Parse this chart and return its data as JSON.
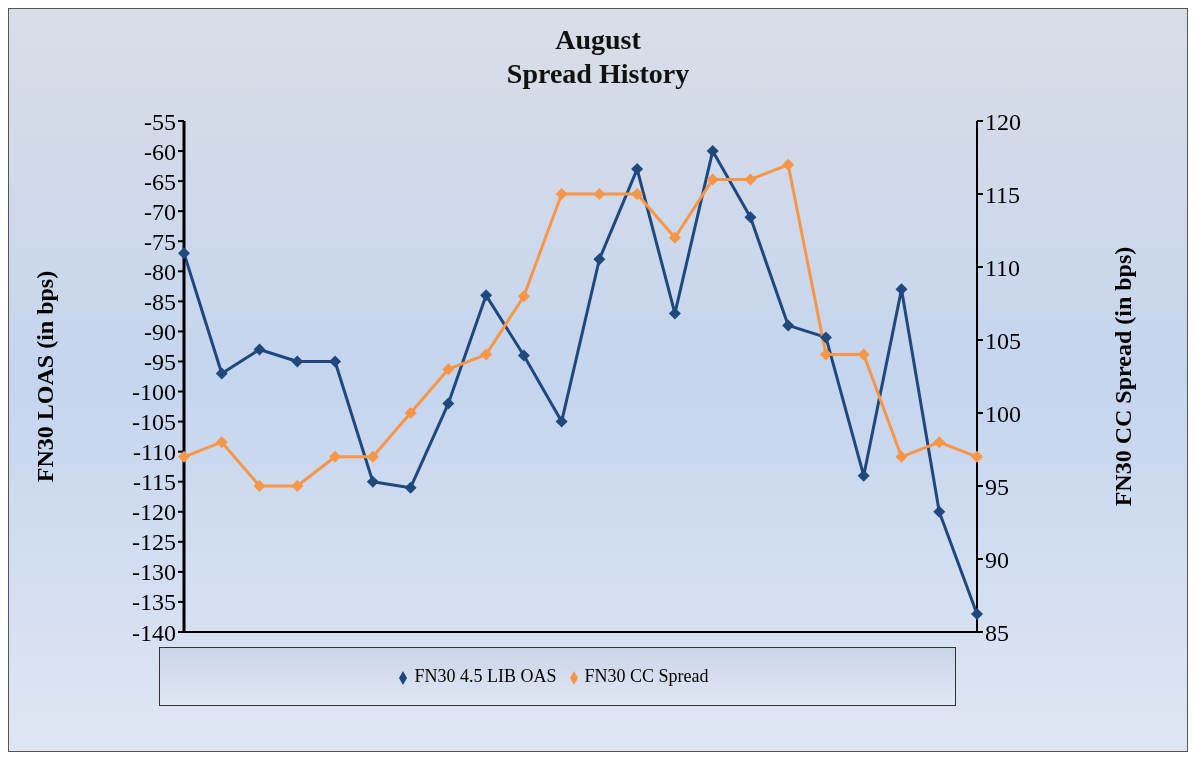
{
  "chart_data": {
    "type": "line",
    "title": "August\nSpread History",
    "ylabel": "FN30 LOAS (in bps)",
    "y2label": "FN30 CC Spread (in bps)",
    "categories": [
      null,
      null,
      null,
      null,
      null,
      null,
      null,
      null,
      null,
      null,
      null,
      null,
      null,
      null,
      null,
      null,
      null,
      null,
      null,
      null,
      null,
      null
    ],
    "series": [
      {
        "name": "FN30 4.5 LIB OAS",
        "color": "#1f497d",
        "values": [
          -77,
          -97,
          -93,
          -95,
          -95,
          -115,
          -116,
          -102,
          -84,
          -94,
          -105,
          -78,
          -63,
          -87,
          -60,
          -71,
          -89,
          -91,
          -114,
          -83,
          -120,
          -137
        ]
      },
      {
        "name": "FN30 CC Spread",
        "color": "#f79646",
        "axis": "y2",
        "values": [
          97,
          98,
          95,
          95,
          97,
          97,
          100,
          103,
          104,
          108,
          115,
          115,
          115,
          112,
          116,
          116,
          117,
          104,
          104,
          97,
          98,
          97
        ]
      }
    ],
    "ylim": [
      -140,
      -55
    ],
    "yticks": [
      -140,
      -135,
      -130,
      -125,
      -120,
      -115,
      -110,
      -105,
      -100,
      -95,
      -90,
      -85,
      -80,
      -75,
      -70,
      -65,
      -60,
      -55
    ],
    "y2lim": [
      85,
      120
    ],
    "y2ticks": [
      85,
      90,
      95,
      100,
      105,
      110,
      115,
      120
    ],
    "marker": "diamond",
    "line_style": "solid",
    "legend": "bottom",
    "grid": false
  }
}
